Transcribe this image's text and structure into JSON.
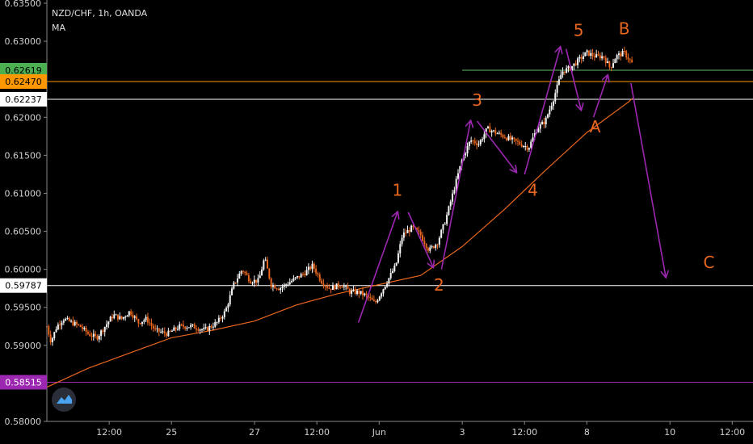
{
  "header": {
    "symbol": "NZD/CHF, 1h, OANDA",
    "indicator": "MA"
  },
  "chart_data": {
    "type": "candlestick",
    "title": "NZD/CHF, 1h, OANDA",
    "ylim": [
      0.58,
      0.635
    ],
    "y_ticks": [
      "0.63500",
      "0.63000",
      "0.62000",
      "0.61500",
      "0.61000",
      "0.60500",
      "0.60000",
      "0.59500",
      "0.59000",
      "0.58000"
    ],
    "x_ticks": [
      {
        "label": "12:00",
        "x": 0.75
      },
      {
        "label": "25",
        "x": 1.5
      },
      {
        "label": "27",
        "x": 2.5
      },
      {
        "label": "12:00",
        "x": 3.25
      },
      {
        "label": "Jun",
        "x": 4.0
      },
      {
        "label": "3",
        "x": 5.0
      },
      {
        "label": "12:00",
        "x": 5.75
      },
      {
        "label": "8",
        "x": 6.5
      },
      {
        "label": "10",
        "x": 7.5
      },
      {
        "label": "12:00",
        "x": 8.25
      }
    ],
    "xlim": [
      0,
      8.5
    ],
    "price_path": [
      [
        0.0,
        0.5925
      ],
      [
        0.05,
        0.5905
      ],
      [
        0.12,
        0.5925
      ],
      [
        0.2,
        0.5935
      ],
      [
        0.3,
        0.593
      ],
      [
        0.4,
        0.5925
      ],
      [
        0.5,
        0.5915
      ],
      [
        0.6,
        0.591
      ],
      [
        0.7,
        0.5925
      ],
      [
        0.8,
        0.594
      ],
      [
        0.9,
        0.5935
      ],
      [
        1.0,
        0.5945
      ],
      [
        1.1,
        0.593
      ],
      [
        1.2,
        0.5935
      ],
      [
        1.3,
        0.592
      ],
      [
        1.45,
        0.5915
      ],
      [
        1.6,
        0.5925
      ],
      [
        1.75,
        0.5925
      ],
      [
        1.9,
        0.592
      ],
      [
        2.05,
        0.593
      ],
      [
        2.15,
        0.5945
      ],
      [
        2.25,
        0.598
      ],
      [
        2.35,
        0.6
      ],
      [
        2.45,
        0.5985
      ],
      [
        2.55,
        0.5985
      ],
      [
        2.62,
        0.6015
      ],
      [
        2.7,
        0.598
      ],
      [
        2.8,
        0.5975
      ],
      [
        2.95,
        0.5985
      ],
      [
        3.1,
        0.5995
      ],
      [
        3.2,
        0.6005
      ],
      [
        3.3,
        0.5985
      ],
      [
        3.4,
        0.5975
      ],
      [
        3.55,
        0.598
      ],
      [
        3.65,
        0.597
      ],
      [
        3.75,
        0.597
      ],
      [
        3.85,
        0.5965
      ],
      [
        3.95,
        0.5955
      ],
      [
        4.0,
        0.5965
      ],
      [
        4.1,
        0.5985
      ],
      [
        4.2,
        0.6005
      ],
      [
        4.28,
        0.6045
      ],
      [
        4.4,
        0.6055
      ],
      [
        4.5,
        0.6045
      ],
      [
        4.6,
        0.6025
      ],
      [
        4.7,
        0.6035
      ],
      [
        4.8,
        0.6065
      ],
      [
        4.9,
        0.6105
      ],
      [
        5.0,
        0.6145
      ],
      [
        5.1,
        0.617
      ],
      [
        5.2,
        0.6165
      ],
      [
        5.3,
        0.6185
      ],
      [
        5.4,
        0.618
      ],
      [
        5.5,
        0.6175
      ],
      [
        5.6,
        0.617
      ],
      [
        5.7,
        0.6165
      ],
      [
        5.8,
        0.616
      ],
      [
        5.9,
        0.6185
      ],
      [
        6.0,
        0.6195
      ],
      [
        6.1,
        0.6225
      ],
      [
        6.2,
        0.626
      ],
      [
        6.3,
        0.6265
      ],
      [
        6.4,
        0.6275
      ],
      [
        6.5,
        0.6285
      ],
      [
        6.6,
        0.628
      ],
      [
        6.7,
        0.628
      ],
      [
        6.78,
        0.6265
      ],
      [
        6.85,
        0.628
      ],
      [
        6.95,
        0.6285
      ],
      [
        7.05,
        0.627
      ]
    ],
    "ma_path": [
      [
        0.0,
        0.5845
      ],
      [
        0.5,
        0.587
      ],
      [
        1.0,
        0.589
      ],
      [
        1.5,
        0.591
      ],
      [
        2.0,
        0.592
      ],
      [
        2.5,
        0.5932
      ],
      [
        3.0,
        0.5953
      ],
      [
        3.5,
        0.5968
      ],
      [
        4.0,
        0.598
      ],
      [
        4.5,
        0.5992
      ],
      [
        5.0,
        0.603
      ],
      [
        5.5,
        0.6078
      ],
      [
        6.0,
        0.613
      ],
      [
        6.5,
        0.618
      ],
      [
        7.0,
        0.622
      ],
      [
        7.05,
        0.6225
      ]
    ],
    "ma_color": "#e8661e",
    "horizontal_lines": [
      {
        "price": 0.62619,
        "label": "0.62619",
        "color": "#66bb6a",
        "label_bg": "#4caf50",
        "label_fg": "#000000"
      },
      {
        "price": 0.6247,
        "label": "0.62470",
        "color": "#ff9800",
        "label_bg": "#ff9800",
        "label_fg": "#000000"
      },
      {
        "price": 0.62237,
        "label": "0.62237",
        "color": "#ffffff",
        "label_bg": "#ffffff",
        "label_fg": "#000000"
      },
      {
        "price": 0.59787,
        "label": "0.59787",
        "color": "#ffffff",
        "label_bg": "#ffffff",
        "label_fg": "#000000"
      },
      {
        "price": 0.58515,
        "label": "0.58515",
        "color": "#9c27b0",
        "label_bg": "#9c27b0",
        "label_fg": "#ffffff"
      }
    ],
    "wave_labels": [
      {
        "text": "1",
        "x": 4.22,
        "y": 0.6097
      },
      {
        "text": "2",
        "x": 4.72,
        "y": 0.5972
      },
      {
        "text": "3",
        "x": 5.18,
        "y": 0.6215
      },
      {
        "text": "4",
        "x": 5.85,
        "y": 0.6097
      },
      {
        "text": "5",
        "x": 6.4,
        "y": 0.6307
      },
      {
        "text": "A",
        "x": 6.6,
        "y": 0.618
      },
      {
        "text": "B",
        "x": 6.95,
        "y": 0.6309
      },
      {
        "text": "C",
        "x": 7.97,
        "y": 0.6002
      }
    ],
    "wave_arrows": [
      {
        "from": [
          3.75,
          0.593
        ],
        "to": [
          4.22,
          0.6075
        ]
      },
      {
        "from": [
          4.35,
          0.6075
        ],
        "to": [
          4.65,
          0.6003
        ]
      },
      {
        "from": [
          4.75,
          0.6
        ],
        "to": [
          5.1,
          0.6195
        ]
      },
      {
        "from": [
          5.18,
          0.6195
        ],
        "to": [
          5.65,
          0.6128
        ]
      },
      {
        "from": [
          5.75,
          0.6125
        ],
        "to": [
          6.18,
          0.6292
        ]
      },
      {
        "from": [
          6.25,
          0.629
        ],
        "to": [
          6.43,
          0.621
        ]
      },
      {
        "from": [
          6.58,
          0.62
        ],
        "to": [
          6.75,
          0.6255
        ]
      },
      {
        "from": [
          7.03,
          0.6245
        ],
        "to": [
          7.45,
          0.599
        ]
      }
    ],
    "wave_color": "#9c27b0"
  }
}
